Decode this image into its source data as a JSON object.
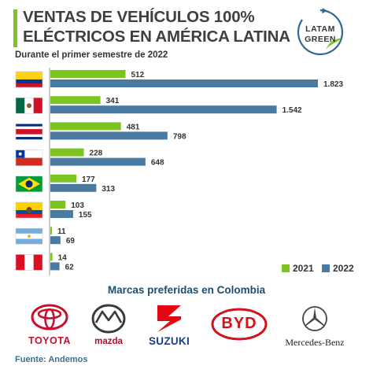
{
  "header": {
    "title_line1": "VENTAS DE VEHÍCULOS 100%",
    "title_line2": "ELÉCTRICOS EN AMÉRICA LATINA",
    "subtitle": "Durante el primer semestre de 2022"
  },
  "logo": {
    "line1": "LATAM",
    "line2": "GREEN"
  },
  "colors": {
    "accent": "#7cc420",
    "series_2021": "#7cc420",
    "series_2022": "#4b7aa0",
    "section": "#1e4f6e"
  },
  "chart_data": {
    "type": "bar",
    "orientation": "horizontal",
    "title": "VENTAS DE VEHÍCULOS 100% ELÉCTRICOS EN AMÉRICA LATINA",
    "subtitle": "Durante el primer semestre de 2022",
    "categories": [
      "colombia",
      "mexico",
      "costa-rica",
      "chile",
      "brazil",
      "ecuador",
      "argentina",
      "peru"
    ],
    "series": [
      {
        "name": "2021",
        "values": [
          512,
          341,
          481,
          228,
          177,
          103,
          11,
          14
        ],
        "labels": [
          "512",
          "341",
          "481",
          "228",
          "177",
          "103",
          "11",
          "14"
        ]
      },
      {
        "name": "2022",
        "values": [
          1823,
          1542,
          798,
          648,
          313,
          155,
          69,
          62
        ],
        "labels": [
          "1.823",
          "1.542",
          "798",
          "648",
          "313",
          "155",
          "69",
          "62"
        ]
      }
    ],
    "xlim": [
      0,
      1823
    ],
    "grid": false,
    "legend": "bottom-right"
  },
  "legend": {
    "item1": "2021",
    "item2": "2022"
  },
  "section_title": "Marcas preferidas en Colombia",
  "brands": [
    "TOYOTA",
    "mazda",
    "SUZUKI",
    "BYD",
    "Mercedes-Benz"
  ],
  "source": "Fuente: Andemos"
}
